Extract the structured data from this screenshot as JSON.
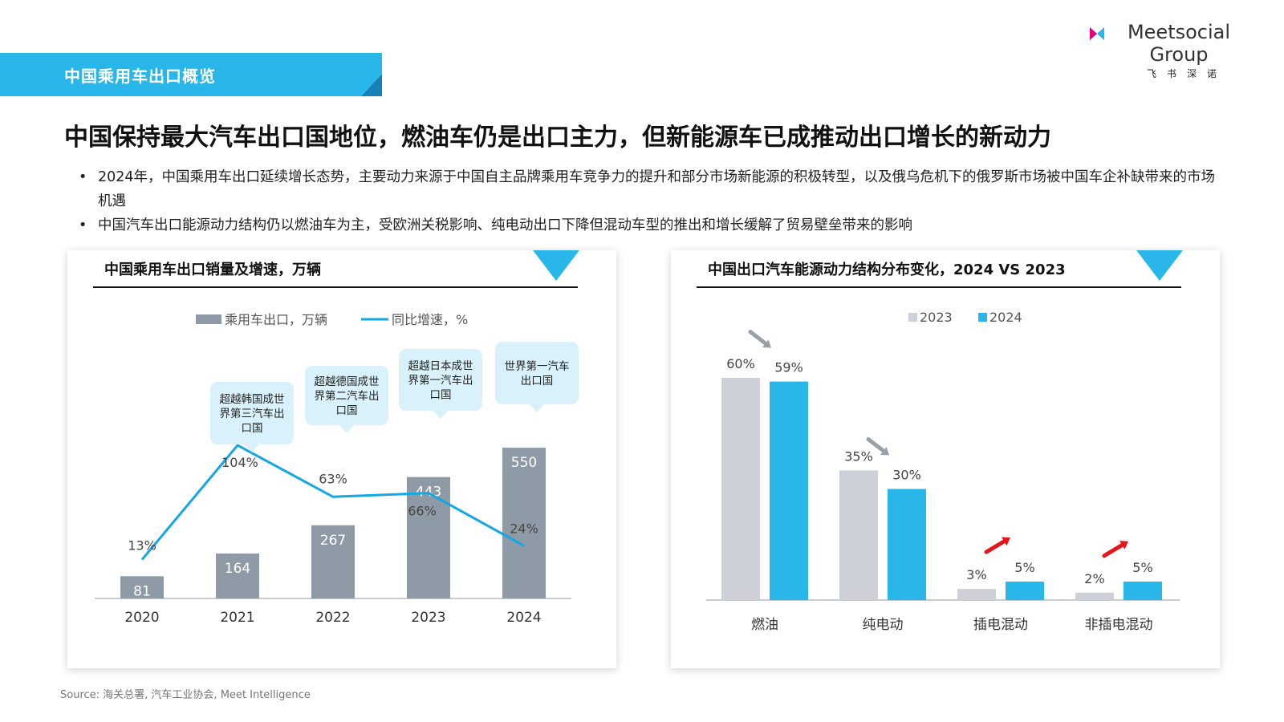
{
  "header": {
    "tag": "中国乘用车出口概览",
    "logo_name": "Meetsocial Group",
    "logo_sub": "飞书深诺",
    "headline": "中国保持最大汽车出口国地位，燃油车仍是出口主力，但新能源车已成推动出口增长的新动力",
    "bullets": [
      "2024年，中国乘用车出口延续增长态势，主要动力来源于中国自主品牌乘用车竞争力的提升和部分市场新能源的积极转型，以及俄乌危机下的俄罗斯市场被中国车企补缺带来的市场机遇",
      "中国汽车出口能源动力结构仍以燃油车为主，受欧洲关税影响、纯电动出口下降但混动车型的推出和增长缓解了贸易壁垒带来的影响"
    ],
    "source": "Source: 海关总署, 汽车工业协会, Meet Intelligence"
  },
  "colors": {
    "accent": "#29B6E8",
    "bar_grey": "#8E9BA7",
    "bar_light": "#CDD1D7",
    "line_blue": "#13A7E3",
    "callout_bg": "#D8F1FB",
    "red_arrow": "#E8141B"
  },
  "chart_data": [
    {
      "type": "bar",
      "title": "中国乘用车出口销量及增速，万辆",
      "categories": [
        "2020",
        "2021",
        "2022",
        "2023",
        "2024"
      ],
      "series": [
        {
          "name": "乘用车出口，万辆",
          "kind": "bar",
          "values": [
            81,
            164,
            267,
            443,
            550
          ],
          "labels": [
            "81",
            "164",
            "267",
            "443",
            "550"
          ]
        },
        {
          "name": "同比增速，%",
          "kind": "line",
          "values": [
            13,
            104,
            63,
            66,
            24
          ],
          "labels": [
            "13%",
            "104%",
            "63%",
            "66%",
            "24%"
          ]
        }
      ],
      "annotations": [
        {
          "category": "2021",
          "text": "超越韩国成世界第三汽车出口国"
        },
        {
          "category": "2022",
          "text": "超越德国成世界第二汽车出口国"
        },
        {
          "category": "2023",
          "text": "超越日本成世界第一汽车出口国"
        },
        {
          "category": "2024",
          "text": "世界第一汽车出口国"
        }
      ],
      "legend": "top-center",
      "grid": false
    },
    {
      "type": "bar",
      "title": "中国出口汽车能源动力结构分布变化，2024 VS 2023",
      "categories": [
        "燃油",
        "纯电动",
        "插电混动",
        "非插电混动"
      ],
      "series": [
        {
          "name": "2023",
          "values": [
            60,
            35,
            3,
            2
          ],
          "labels": [
            "60%",
            "35%",
            "3%",
            "2%"
          ]
        },
        {
          "name": "2024",
          "values": [
            59,
            30,
            5,
            5
          ],
          "labels": [
            "59%",
            "30%",
            "5%",
            "5%"
          ]
        }
      ],
      "trend_arrows": [
        "down",
        "down",
        "up",
        "up"
      ],
      "legend": "top-center",
      "grid": false
    }
  ]
}
